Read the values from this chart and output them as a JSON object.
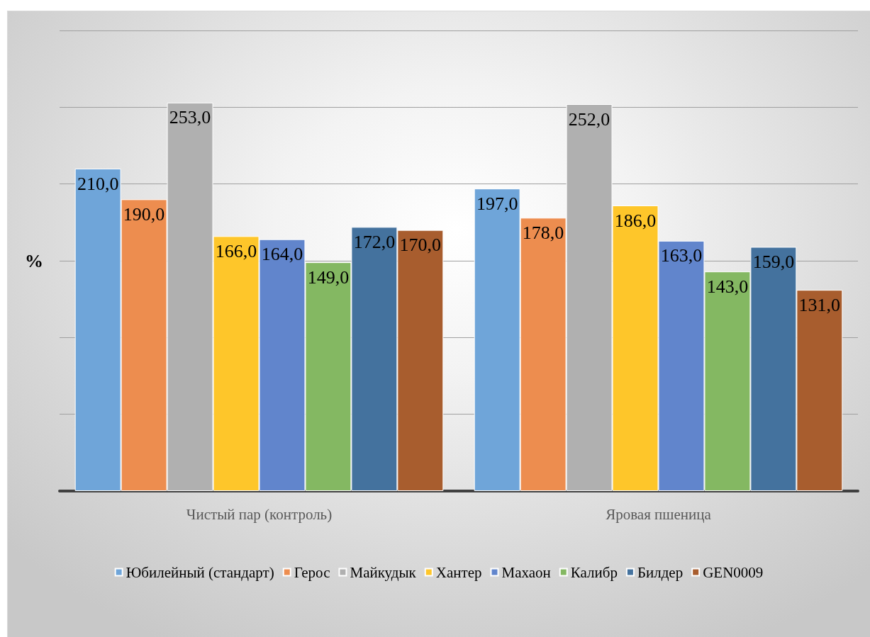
{
  "chart_data": {
    "type": "bar",
    "ylabel": "%",
    "categories": [
      "Чистый пар (контроль)",
      "Яровая пшеница"
    ],
    "series": [
      {
        "name": "Юбилейный (стандарт)",
        "color": "#6fa5d9",
        "values": [
          210,
          197
        ],
        "value_labels": [
          "210,0",
          "197,0"
        ]
      },
      {
        "name": "Герос",
        "color": "#ed8d4f",
        "values": [
          190,
          178
        ],
        "value_labels": [
          "190,0",
          "178,0"
        ]
      },
      {
        "name": "Майкудык",
        "color": "#b0b0b0",
        "values": [
          253,
          252
        ],
        "value_labels": [
          "253,0",
          "252,0"
        ]
      },
      {
        "name": "Хантер",
        "color": "#fec62a",
        "values": [
          166,
          186
        ],
        "value_labels": [
          "166,0",
          "186,0"
        ]
      },
      {
        "name": "Махаон",
        "color": "#6185cc",
        "values": [
          164,
          163
        ],
        "value_labels": [
          "164,0",
          "163,0"
        ]
      },
      {
        "name": "Калибр",
        "color": "#84b862",
        "values": [
          149,
          143
        ],
        "value_labels": [
          "149,0",
          "143,0"
        ]
      },
      {
        "name": "Билдер",
        "color": "#44729e",
        "values": [
          172,
          159
        ],
        "value_labels": [
          "172,0",
          "159,0"
        ]
      },
      {
        "name": "GEN0009",
        "color": "#a85d2e",
        "values": [
          170,
          131
        ],
        "value_labels": [
          "170,0",
          "131,0"
        ]
      }
    ],
    "ylim": [
      0,
      300
    ],
    "yticks": [
      {
        "value": 0,
        "label": null
      },
      {
        "value": 50,
        "label": null
      },
      {
        "value": 100,
        "label": null
      },
      {
        "value": 150,
        "label": null
      },
      {
        "value": 200,
        "label": null
      },
      {
        "value": 250,
        "label": null
      },
      {
        "value": 300,
        "label": null
      }
    ],
    "tick_labels": "x",
    "grid": "y",
    "legend": "bottom"
  }
}
